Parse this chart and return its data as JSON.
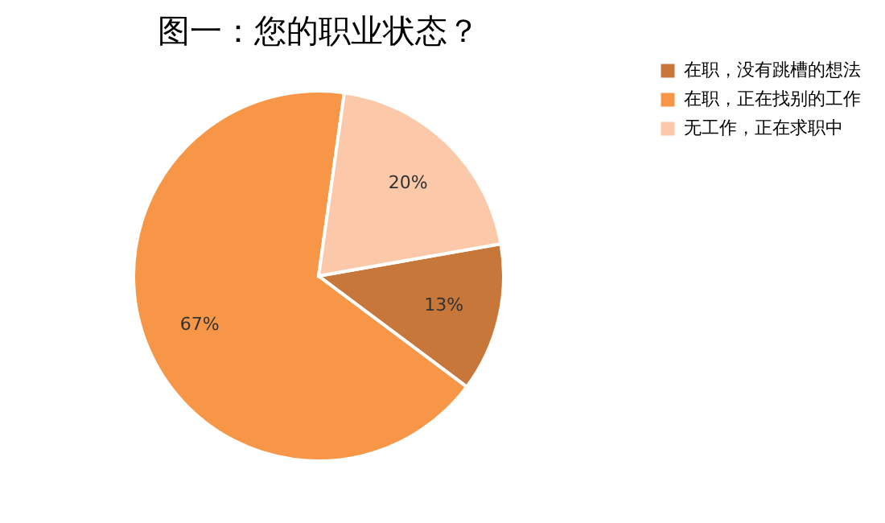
{
  "chart_data": {
    "type": "pie",
    "title": "图一：您的职业状态？",
    "categories": [
      "在职，没有跳槽的想法",
      "在职，正在找别的工作",
      "无工作，正在求职中"
    ],
    "values": [
      13,
      67,
      20
    ],
    "colors": [
      "#c8773a",
      "#f79646",
      "#fbc9a9"
    ],
    "value_labels": [
      "13%",
      "67%",
      "20%"
    ],
    "legend": "right"
  }
}
